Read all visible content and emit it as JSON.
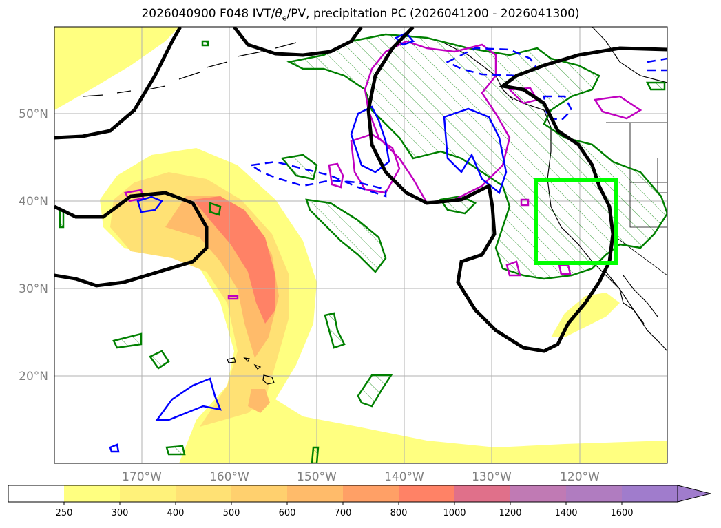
{
  "title": {
    "prefix": "2026040900 F048 IVT/",
    "theta": "θ",
    "theta_sub": "e",
    "suffix": "/PV, precipitation PC (2026041200 - 2026041300)"
  },
  "axes": {
    "lat_labels": [
      "50°N",
      "40°N",
      "30°N",
      "20°N"
    ],
    "lon_labels": [
      "170°W",
      "160°W",
      "150°W",
      "140°W",
      "130°W",
      "120°W"
    ]
  },
  "colorbar": {
    "levels": [
      "250",
      "300",
      "400",
      "500",
      "600",
      "700",
      "800",
      "1000",
      "1200",
      "1400",
      "1600"
    ],
    "colors": [
      "#ffffff",
      "#ffff80",
      "#fff27a",
      "#ffe174",
      "#ffd06e",
      "#ffbb6a",
      "#ffa066",
      "#ff8266",
      "#e0708a",
      "#c07ab4",
      "#b07cc0",
      "#a07ccc"
    ],
    "extend": "max"
  },
  "colors": {
    "precip_pc": "#008000",
    "pv_positive": "#c000c0",
    "pv_negative": "#0000ff",
    "theta_e": "#000000",
    "target_box": "#00ff00",
    "gridline": "#b0b0b0",
    "coast": "#000000"
  }
}
